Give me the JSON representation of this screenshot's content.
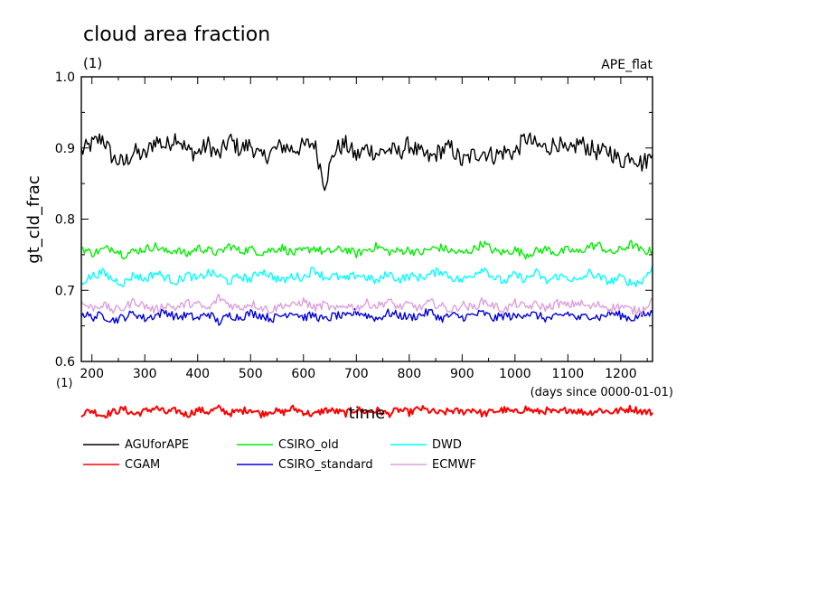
{
  "chart_data": {
    "type": "line",
    "title": "cloud area fraction",
    "title_unit": "(1)",
    "case_label": "APE_flat",
    "xlabel": "time",
    "xunit": "(days since 0000-01-01)",
    "ylabel": "gt_cld_frac",
    "yunit": "(1)",
    "xlim": [
      180,
      1260
    ],
    "ylim": [
      0.6,
      1.0
    ],
    "xticks": [
      200,
      300,
      400,
      500,
      600,
      700,
      800,
      900,
      1000,
      1100,
      1200
    ],
    "yticks": [
      0.6,
      0.7,
      0.8,
      0.9,
      1.0
    ],
    "ytick_labels": [
      "0.6",
      "0.7",
      "0.8",
      "0.9",
      "1.0"
    ],
    "grid": false,
    "legend_position": "below",
    "x": [
      180,
      200,
      220,
      240,
      260,
      280,
      300,
      320,
      340,
      360,
      380,
      400,
      420,
      440,
      460,
      480,
      500,
      520,
      540,
      560,
      580,
      600,
      620,
      640,
      660,
      680,
      700,
      720,
      740,
      760,
      780,
      800,
      820,
      840,
      860,
      880,
      900,
      920,
      940,
      960,
      980,
      1000,
      1020,
      1040,
      1060,
      1080,
      1100,
      1120,
      1140,
      1160,
      1180,
      1200,
      1220,
      1240,
      1260
    ],
    "series": [
      {
        "name": "AGUforAPE",
        "color": "#000000",
        "values": [
          0.895,
          0.905,
          0.915,
          0.885,
          0.878,
          0.895,
          0.888,
          0.912,
          0.902,
          0.918,
          0.896,
          0.893,
          0.905,
          0.888,
          0.912,
          0.898,
          0.905,
          0.885,
          0.895,
          0.903,
          0.898,
          0.902,
          0.908,
          0.85,
          0.898,
          0.905,
          0.888,
          0.9,
          0.892,
          0.898,
          0.893,
          0.905,
          0.892,
          0.885,
          0.897,
          0.9,
          0.88,
          0.89,
          0.895,
          0.889,
          0.895,
          0.893,
          0.915,
          0.903,
          0.9,
          0.908,
          0.89,
          0.908,
          0.9,
          0.893,
          0.896,
          0.88,
          0.892,
          0.878,
          0.89
        ]
      },
      {
        "name": "CGAM",
        "color": "#ff0000",
        "values": [
          0.527,
          0.531,
          0.524,
          0.529,
          0.533,
          0.526,
          0.53,
          0.535,
          0.528,
          0.531,
          0.525,
          0.532,
          0.529,
          0.534,
          0.527,
          0.53,
          0.533,
          0.526,
          0.531,
          0.528,
          0.534,
          0.529,
          0.525,
          0.532,
          0.53,
          0.527,
          0.533,
          0.529,
          0.531,
          0.526,
          0.532,
          0.528,
          0.534,
          0.53,
          0.527,
          0.531,
          0.529,
          0.533,
          0.526,
          0.53,
          0.532,
          0.528,
          0.534,
          0.529,
          0.531,
          0.527,
          0.533,
          0.53,
          0.528,
          0.532,
          0.529,
          0.531,
          0.534,
          0.53,
          0.528
        ]
      },
      {
        "name": "CSIRO_old",
        "color": "#00ee00",
        "values": [
          0.76,
          0.752,
          0.757,
          0.76,
          0.75,
          0.755,
          0.758,
          0.762,
          0.754,
          0.757,
          0.75,
          0.76,
          0.756,
          0.752,
          0.763,
          0.755,
          0.758,
          0.753,
          0.757,
          0.76,
          0.752,
          0.755,
          0.76,
          0.753,
          0.756,
          0.758,
          0.751,
          0.757,
          0.762,
          0.754,
          0.755,
          0.757,
          0.752,
          0.758,
          0.76,
          0.755,
          0.752,
          0.757,
          0.766,
          0.755,
          0.753,
          0.757,
          0.75,
          0.755,
          0.758,
          0.752,
          0.757,
          0.753,
          0.762,
          0.763,
          0.752,
          0.757,
          0.765,
          0.755,
          0.755
        ]
      },
      {
        "name": "CSIRO_standard",
        "color": "#0000dd",
        "values": [
          0.668,
          0.662,
          0.665,
          0.658,
          0.662,
          0.668,
          0.66,
          0.665,
          0.67,
          0.662,
          0.665,
          0.66,
          0.668,
          0.655,
          0.665,
          0.662,
          0.668,
          0.665,
          0.66,
          0.665,
          0.67,
          0.662,
          0.665,
          0.658,
          0.665,
          0.662,
          0.67,
          0.665,
          0.66,
          0.668,
          0.665,
          0.662,
          0.665,
          0.67,
          0.66,
          0.665,
          0.662,
          0.665,
          0.668,
          0.66,
          0.665,
          0.662,
          0.668,
          0.665,
          0.66,
          0.662,
          0.668,
          0.66,
          0.665,
          0.662,
          0.668,
          0.665,
          0.66,
          0.665,
          0.668
        ]
      },
      {
        "name": "DWD",
        "color": "#00ffff",
        "values": [
          0.712,
          0.72,
          0.725,
          0.715,
          0.71,
          0.722,
          0.715,
          0.725,
          0.718,
          0.712,
          0.722,
          0.715,
          0.725,
          0.72,
          0.712,
          0.72,
          0.715,
          0.728,
          0.72,
          0.713,
          0.72,
          0.718,
          0.73,
          0.718,
          0.72,
          0.715,
          0.722,
          0.718,
          0.712,
          0.724,
          0.715,
          0.72,
          0.718,
          0.722,
          0.728,
          0.718,
          0.714,
          0.722,
          0.732,
          0.718,
          0.712,
          0.722,
          0.715,
          0.725,
          0.712,
          0.72,
          0.718,
          0.712,
          0.725,
          0.718,
          0.712,
          0.718,
          0.71,
          0.712,
          0.735
        ]
      },
      {
        "name": "ECMWF",
        "color": "#dda0dd",
        "values": [
          0.682,
          0.675,
          0.68,
          0.672,
          0.675,
          0.685,
          0.678,
          0.672,
          0.68,
          0.675,
          0.682,
          0.68,
          0.673,
          0.69,
          0.68,
          0.675,
          0.682,
          0.676,
          0.672,
          0.68,
          0.678,
          0.685,
          0.675,
          0.68,
          0.672,
          0.68,
          0.675,
          0.682,
          0.678,
          0.685,
          0.676,
          0.68,
          0.675,
          0.683,
          0.678,
          0.672,
          0.68,
          0.675,
          0.685,
          0.678,
          0.672,
          0.682,
          0.676,
          0.68,
          0.675,
          0.682,
          0.678,
          0.683,
          0.676,
          0.68,
          0.675,
          0.678,
          0.672,
          0.672,
          0.688
        ]
      }
    ]
  }
}
